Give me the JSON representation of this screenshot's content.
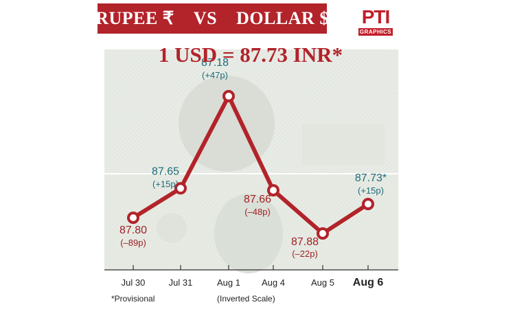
{
  "header": {
    "title_left": "RUPEE ₹",
    "title_vs": "VS",
    "title_right": "DOLLAR $",
    "logo_text": "PTI",
    "logo_sub": "GRAPHICS"
  },
  "headline": "1 USD = 87.73 INR*",
  "chart_data": {
    "type": "line",
    "categories": [
      "Jul 30",
      "Jul 31",
      "Aug 1",
      "Aug 4",
      "Aug 5",
      "Aug 6"
    ],
    "values": [
      87.8,
      87.65,
      87.18,
      87.66,
      87.88,
      87.73
    ],
    "value_labels": [
      "87.80",
      "87.65",
      "87.18",
      "87.66",
      "87.88",
      "87.73*"
    ],
    "change_labels": [
      "(–89p)",
      "(+15p)",
      "(+47p)",
      "(–48p)",
      "(–22p)",
      "(+15p)"
    ],
    "direction": [
      "down",
      "up",
      "up",
      "down",
      "down",
      "up"
    ],
    "inverted_y": true,
    "ylim": [
      87.9,
      87.15
    ],
    "colors": {
      "line": "#b2232a",
      "up": "#1c6a78",
      "down": "#a01e23"
    }
  },
  "footer": {
    "provisional_note": "*Provisional",
    "scale_note": "(Inverted Scale)"
  }
}
